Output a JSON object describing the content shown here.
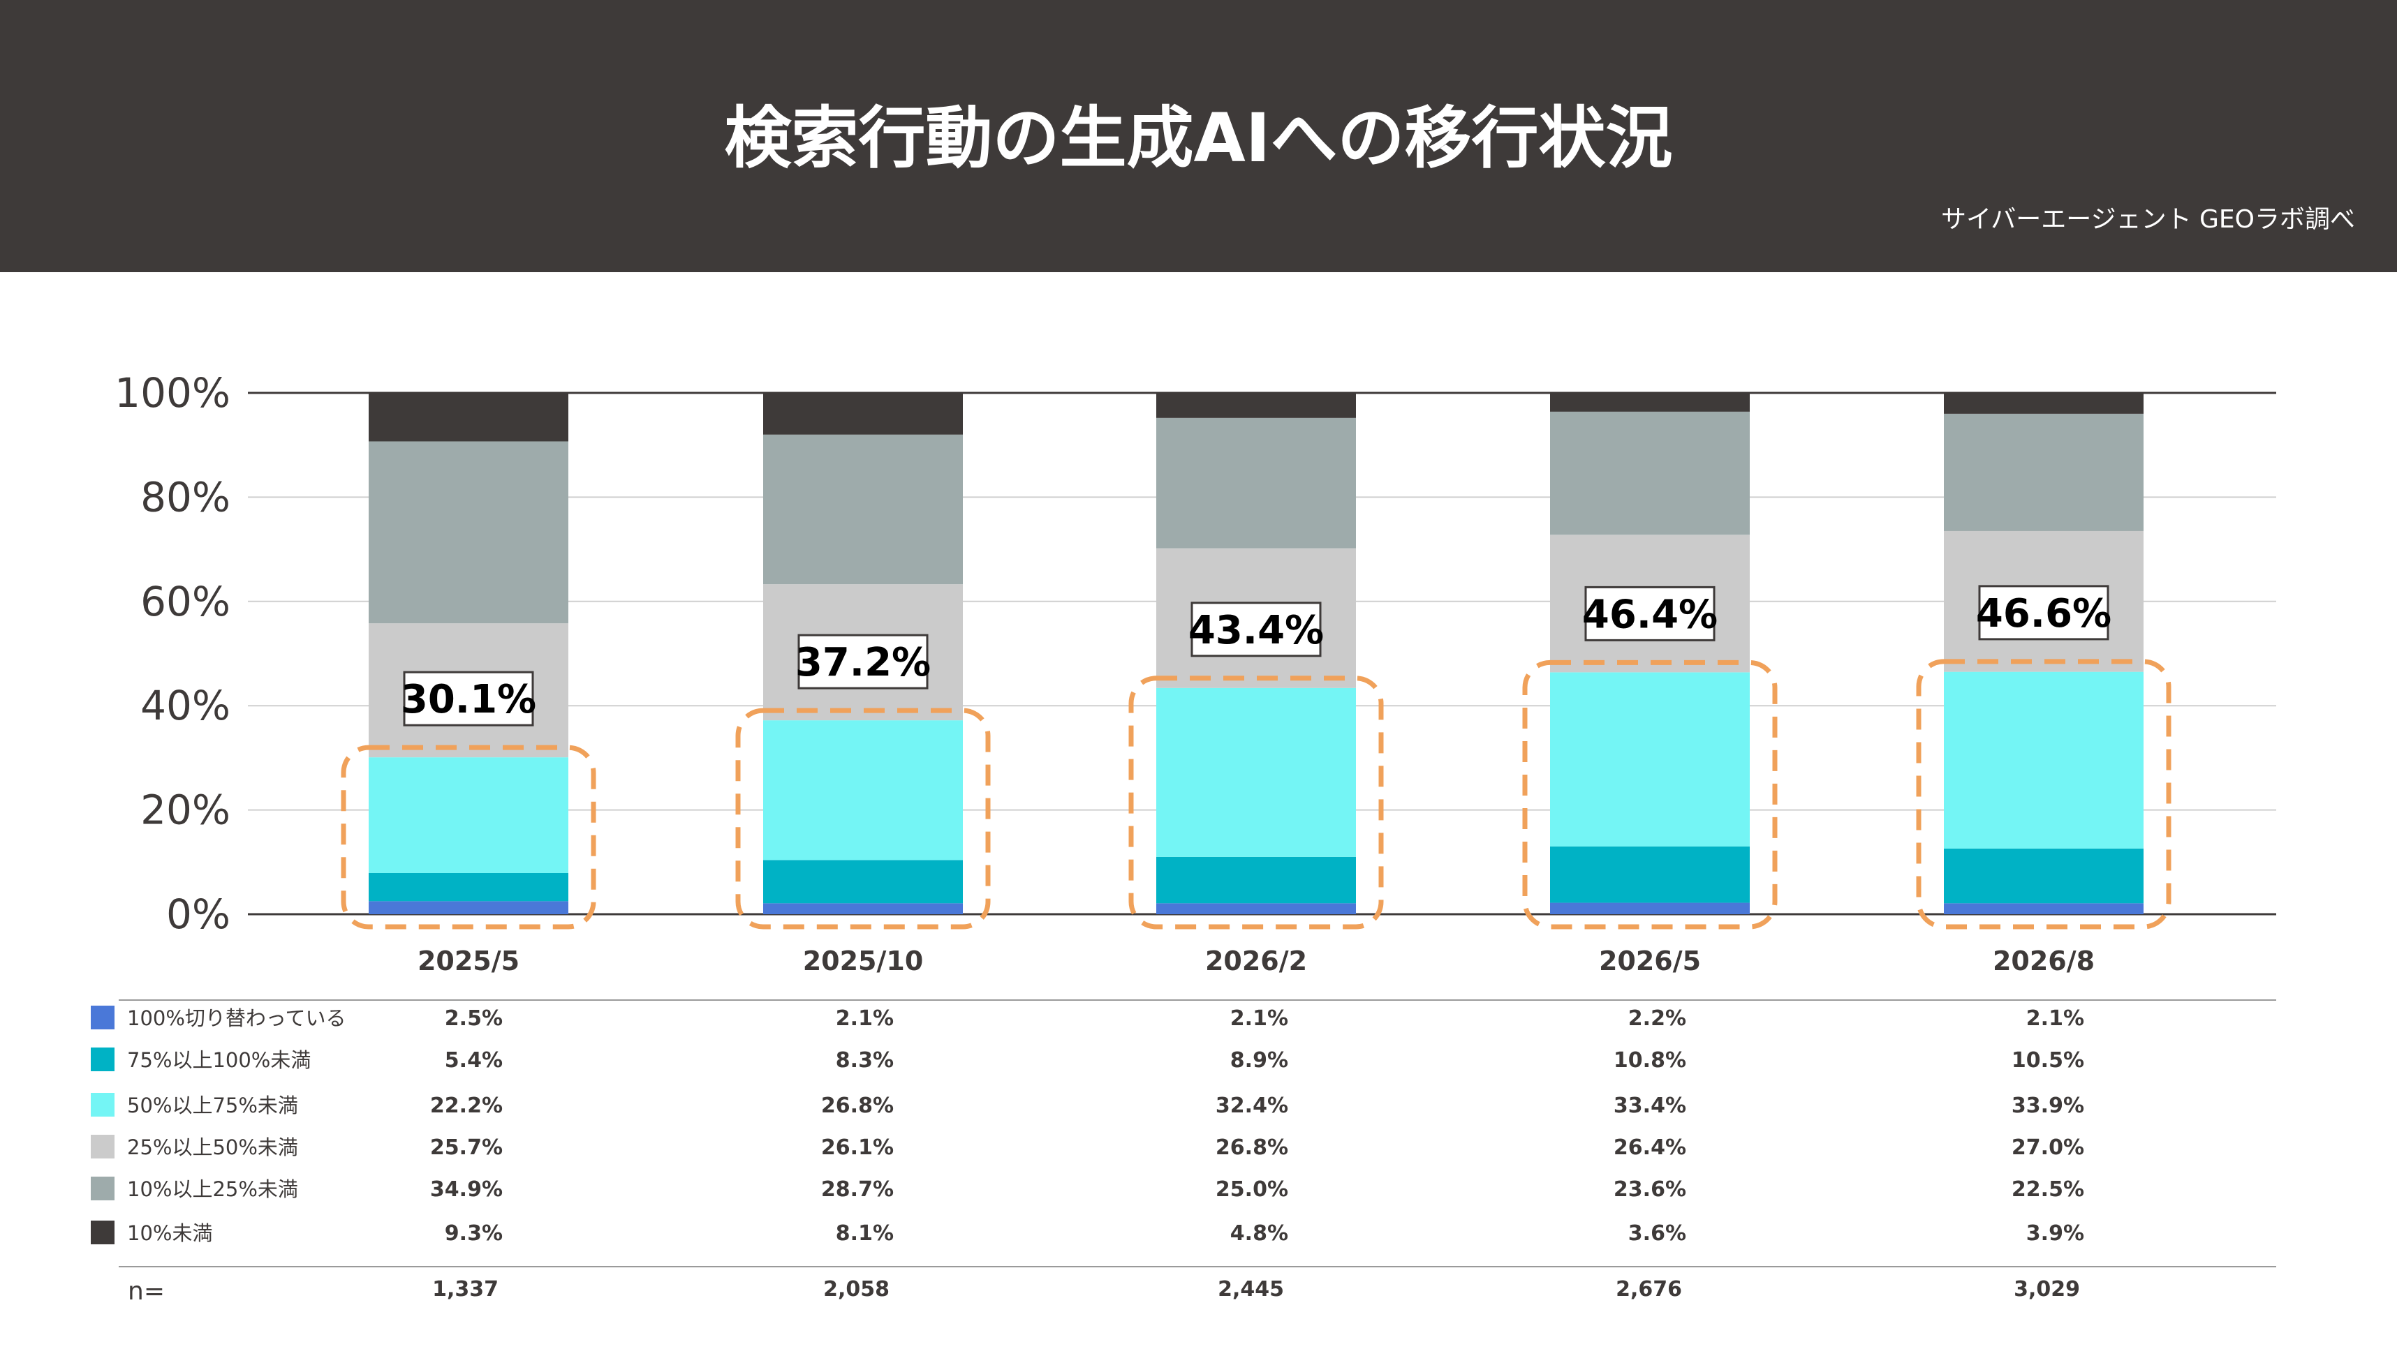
{
  "header": {
    "title": "検索行動の生成AIへの移行状況",
    "source": "サイバーエージェント GEOラボ調べ"
  },
  "chart_data": {
    "type": "bar",
    "stacked": true,
    "categories": [
      "2025/5",
      "2025/10",
      "2026/2",
      "2026/5",
      "2026/8"
    ],
    "ylim": [
      0,
      100
    ],
    "yticks": [
      "0%",
      "20%",
      "40%",
      "60%",
      "80%",
      "100%"
    ],
    "series": [
      {
        "name": "100%切り替わっている",
        "color": "#4a78d8",
        "values": [
          2.5,
          2.1,
          2.1,
          2.2,
          2.1
        ],
        "labels": [
          "2.5%",
          "2.1%",
          "2.1%",
          "2.2%",
          "2.1%"
        ]
      },
      {
        "name": "75%以上100%未満",
        "color": "#00b2c5",
        "values": [
          5.4,
          8.3,
          8.9,
          10.8,
          10.5
        ],
        "labels": [
          "5.4%",
          "8.3%",
          "8.9%",
          "10.8%",
          "10.5%"
        ]
      },
      {
        "name": "50%以上75%未満",
        "color": "#74f5f5",
        "values": [
          22.2,
          26.8,
          32.4,
          33.4,
          33.9
        ],
        "labels": [
          "22.2%",
          "26.8%",
          "32.4%",
          "33.4%",
          "33.9%"
        ]
      },
      {
        "name": "25%以上50%未満",
        "color": "#cbcbcb",
        "values": [
          25.7,
          26.1,
          26.8,
          26.4,
          27.0
        ],
        "labels": [
          "25.7%",
          "26.1%",
          "26.8%",
          "26.4%",
          "27.0%"
        ]
      },
      {
        "name": "10%以上25%未満",
        "color": "#9eabab",
        "values": [
          34.9,
          28.7,
          25.0,
          23.6,
          22.5
        ],
        "labels": [
          "34.9%",
          "28.7%",
          "25.0%",
          "23.6%",
          "22.5%"
        ]
      },
      {
        "name": "10%未満",
        "color": "#3e3a39",
        "values": [
          9.3,
          8.1,
          4.8,
          3.6,
          3.9
        ],
        "labels": [
          "9.3%",
          "8.1%",
          "4.8%",
          "3.6%",
          "3.9%"
        ]
      }
    ],
    "callouts": [
      {
        "value": 30.1,
        "label": "30.1%"
      },
      {
        "value": 37.2,
        "label": "37.2%"
      },
      {
        "value": 43.4,
        "label": "43.4%"
      },
      {
        "value": 46.4,
        "label": "46.4%"
      },
      {
        "value": 46.6,
        "label": "46.6%"
      }
    ],
    "highlight_color": "#f0a15a",
    "n_label": "n=",
    "n_values": [
      "1,337",
      "2,058",
      "2,445",
      "2,676",
      "3,029"
    ]
  }
}
